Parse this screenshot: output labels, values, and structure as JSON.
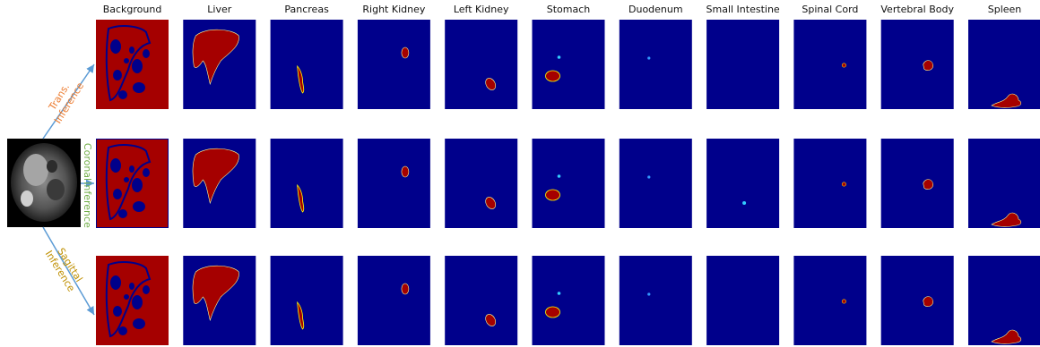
{
  "figure": {
    "columns": [
      "Background",
      "Liver",
      "Pancreas",
      "Right Kidney",
      "Left Kidney",
      "Stomach",
      "Duodenum",
      "Small Intestine",
      "Spinal Cord",
      "Vertebral Body",
      "Spleen"
    ],
    "rows": [
      {
        "label_lines": [
          "Trans.",
          "Inference"
        ]
      },
      {
        "label_lines": [
          "Coronal",
          "Inference"
        ]
      },
      {
        "label_lines": [
          "Sagittal",
          "Inference"
        ]
      }
    ]
  }
}
